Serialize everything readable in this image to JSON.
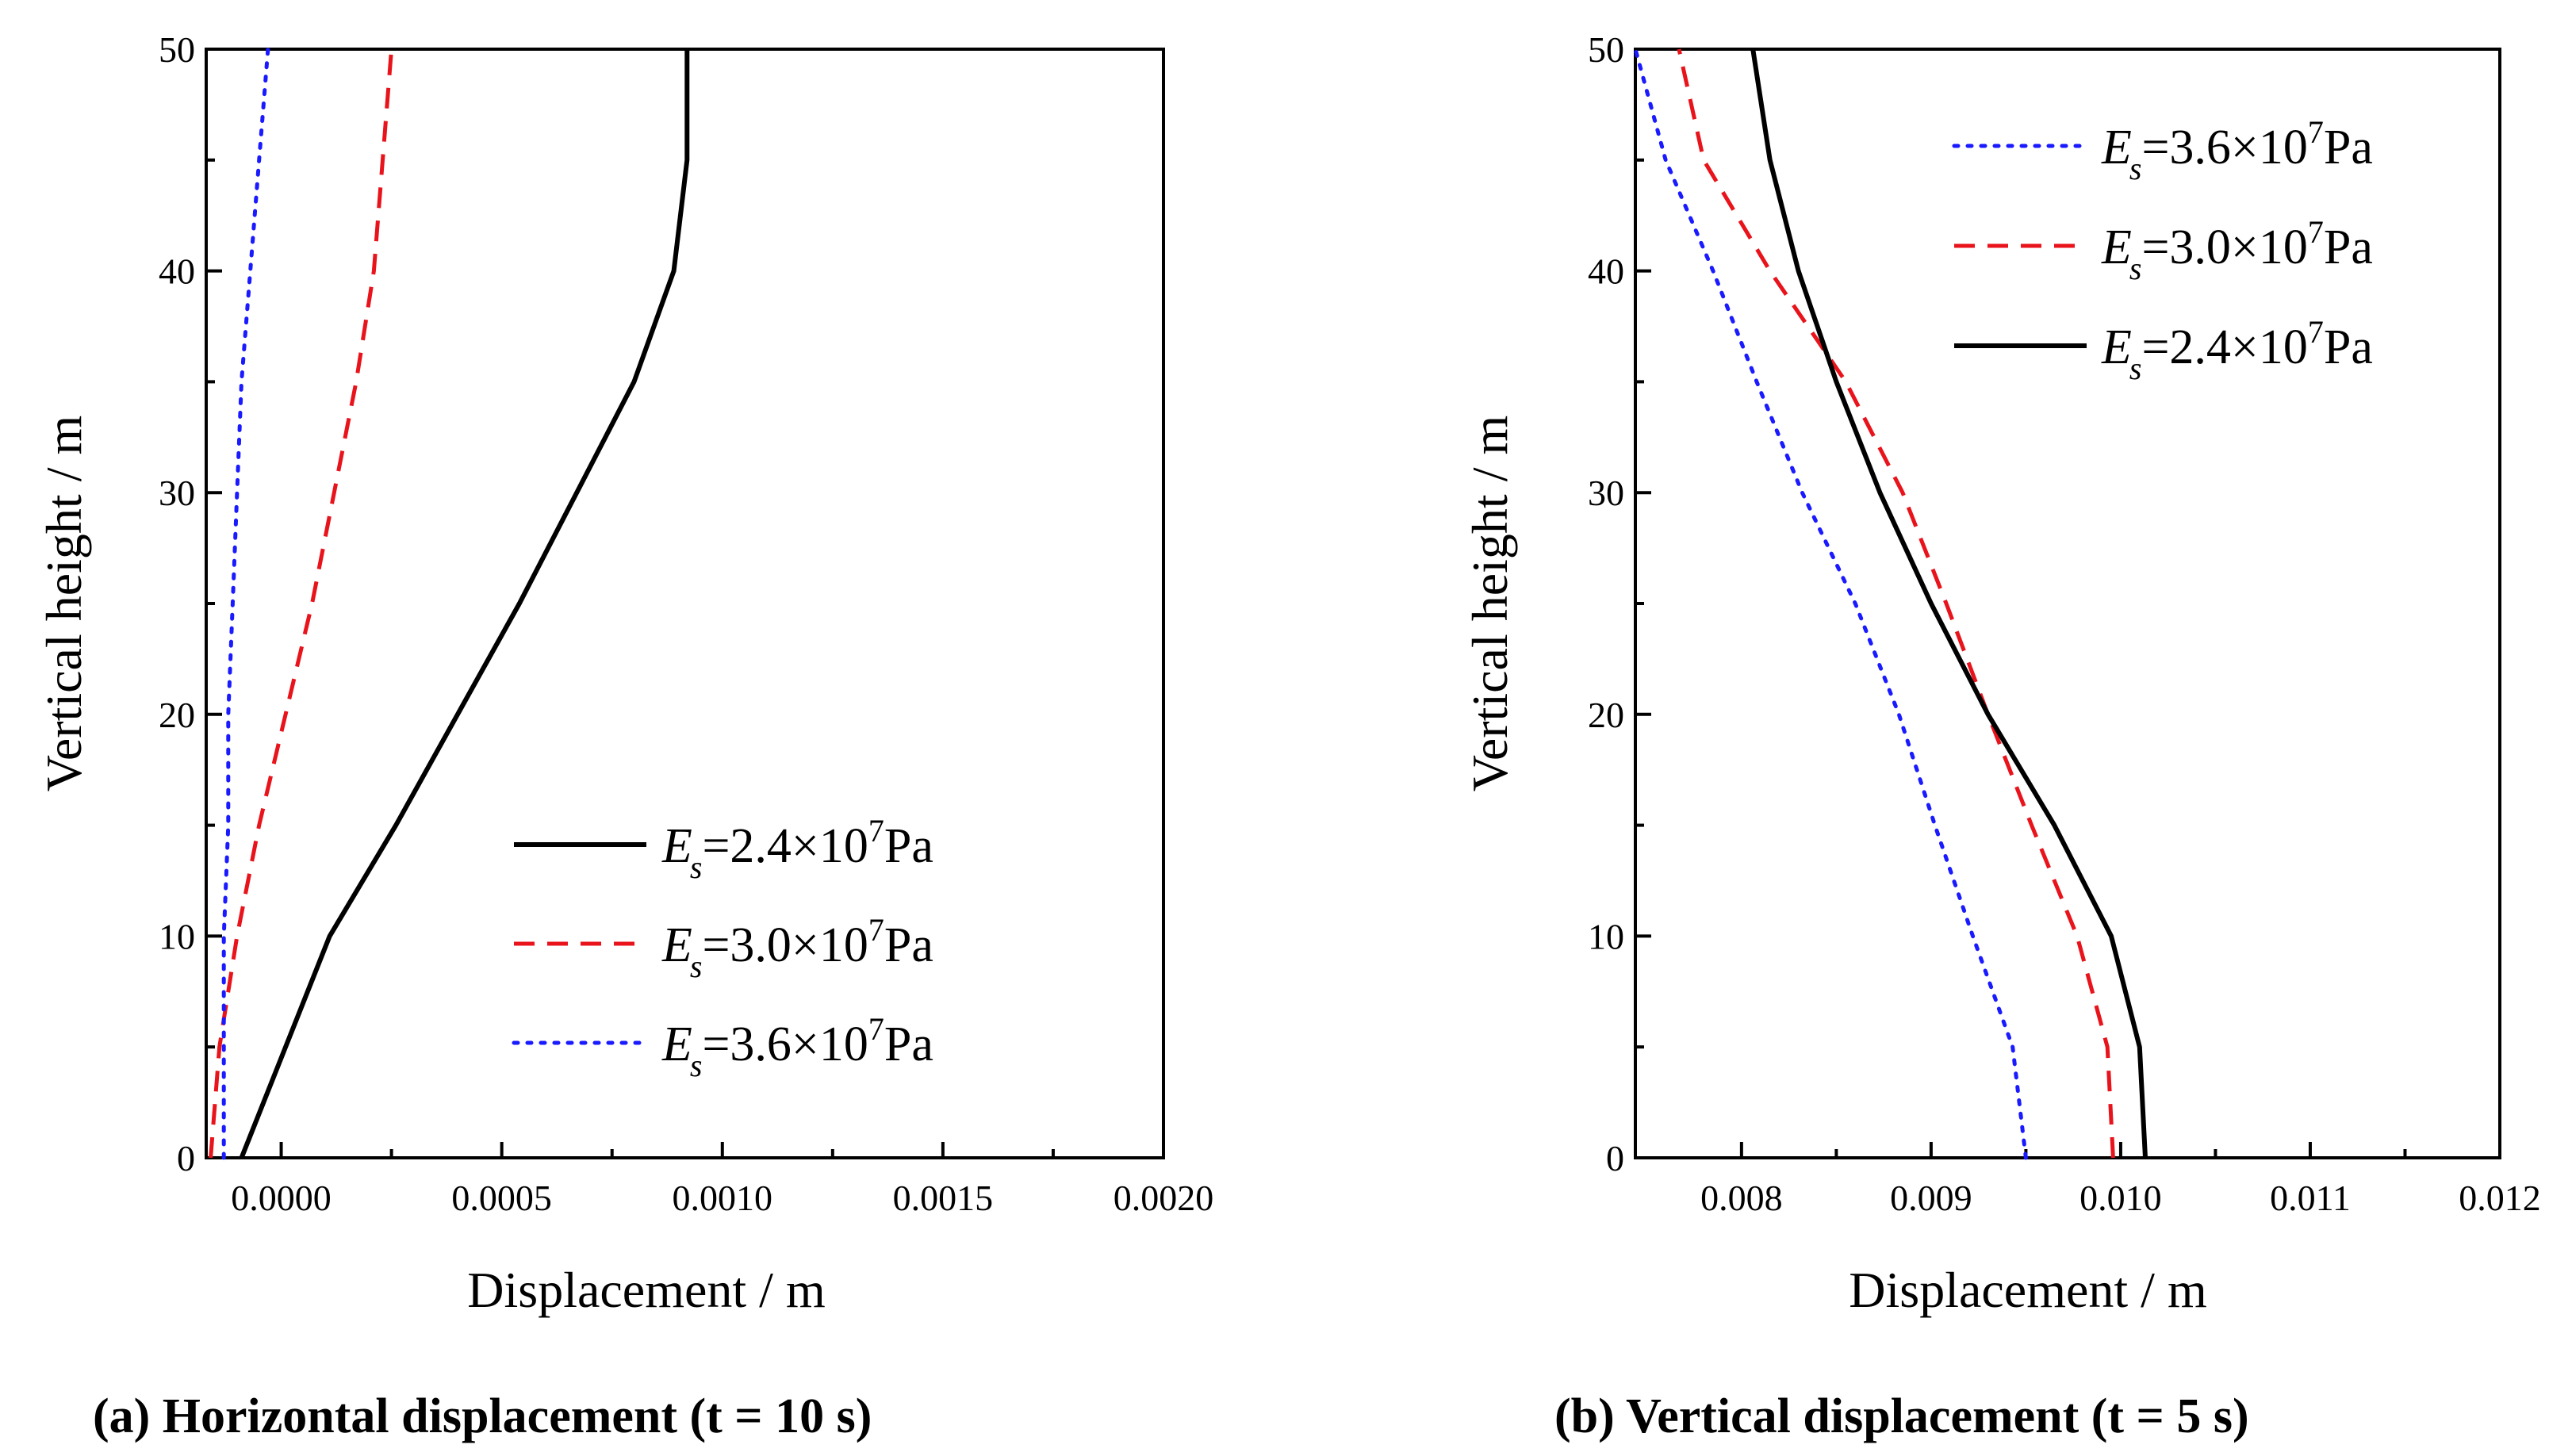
{
  "colors": {
    "es_2_4": "#000000",
    "es_3_0": "#e8131b",
    "es_3_6": "#1a1aff"
  },
  "chart_data": [
    {
      "type": "line",
      "caption": "(a) Horizontal displacement (t = 10 s)",
      "xlabel": "Displacement / m",
      "ylabel": "Vertical height / m",
      "xlim": [
        -0.00017,
        0.002
      ],
      "ylim": [
        0,
        50
      ],
      "xticks": [
        0.0,
        0.0005,
        0.001,
        0.0015,
        0.002
      ],
      "xtick_labels": [
        "0.0000",
        "0.0005",
        "0.0010",
        "0.0015",
        "0.0020"
      ],
      "yticks": [
        0,
        10,
        20,
        30,
        40,
        50
      ],
      "ytick_labels": [
        "0",
        "10",
        "20",
        "30",
        "40",
        "50"
      ],
      "legend_position": "bottom-right",
      "series": [
        {
          "name": "Es=2.4×10^7Pa",
          "label": {
            "E": "E",
            "sub": "s",
            "mid": "=2.4×10",
            "sup": "7",
            "unit": "Pa"
          },
          "color_key": "es_2_4",
          "dash": "solid",
          "points": [
            [
              -9e-05,
              0
            ],
            [
              1e-05,
              5
            ],
            [
              0.00011,
              10
            ],
            [
              0.00026,
              15
            ],
            [
              0.0004,
              20
            ],
            [
              0.00054,
              25
            ],
            [
              0.00067,
              30
            ],
            [
              0.0008,
              35
            ],
            [
              0.00089,
              40
            ],
            [
              0.00092,
              45
            ],
            [
              0.00092,
              50
            ]
          ]
        },
        {
          "name": "Es=3.0×10^7Pa",
          "label": {
            "E": "E",
            "sub": "s",
            "mid": "=3.0×10",
            "sup": "7",
            "unit": "Pa"
          },
          "color_key": "es_3_0",
          "dash": "dash",
          "points": [
            [
              -0.00016,
              0
            ],
            [
              -0.00014,
              5
            ],
            [
              -0.0001,
              10
            ],
            [
              -5e-05,
              15
            ],
            [
              1e-05,
              20
            ],
            [
              7e-05,
              25
            ],
            [
              0.00012,
              30
            ],
            [
              0.00017,
              35
            ],
            [
              0.00021,
              40
            ],
            [
              0.00023,
              45
            ],
            [
              0.00025,
              50
            ]
          ]
        },
        {
          "name": "Es=3.6×10^7Pa",
          "label": {
            "E": "E",
            "sub": "s",
            "mid": "=3.6×10",
            "sup": "7",
            "unit": "Pa"
          },
          "color_key": "es_3_6",
          "dash": "dot",
          "points": [
            [
              -0.00013,
              0
            ],
            [
              -0.00013,
              5
            ],
            [
              -0.00013,
              10
            ],
            [
              -0.00012,
              15
            ],
            [
              -0.00012,
              20
            ],
            [
              -0.00011,
              25
            ],
            [
              -0.0001,
              30
            ],
            [
              -9e-05,
              35
            ],
            [
              -7e-05,
              40
            ],
            [
              -5e-05,
              45
            ],
            [
              -3e-05,
              50
            ]
          ]
        }
      ]
    },
    {
      "type": "line",
      "caption": "(b) Vertical displacement (t = 5 s)",
      "xlabel": "Displacement / m",
      "ylabel": "Vertical height / m",
      "xlim": [
        0.00744,
        0.012
      ],
      "ylim": [
        0,
        50
      ],
      "xticks": [
        0.008,
        0.009,
        0.01,
        0.011,
        0.012
      ],
      "xtick_labels": [
        "0.008",
        "0.009",
        "0.010",
        "0.011",
        "0.012"
      ],
      "yticks": [
        0,
        10,
        20,
        30,
        40,
        50
      ],
      "ytick_labels": [
        "0",
        "10",
        "20",
        "30",
        "40",
        "50"
      ],
      "legend_position": "top-right",
      "series": [
        {
          "name": "Es=3.6×10^7Pa",
          "label": {
            "E": "E",
            "sub": "s",
            "mid": "=3.6×10",
            "sup": "7",
            "unit": "Pa"
          },
          "color_key": "es_3_6",
          "dash": "dot",
          "points": [
            [
              0.0095,
              0
            ],
            [
              0.00943,
              5
            ],
            [
              0.00922,
              10
            ],
            [
              0.00902,
              15
            ],
            [
              0.00883,
              20
            ],
            [
              0.0086,
              25
            ],
            [
              0.00832,
              30
            ],
            [
              0.00808,
              35
            ],
            [
              0.00785,
              40
            ],
            [
              0.0076,
              45
            ],
            [
              0.00744,
              50
            ]
          ]
        },
        {
          "name": "Es=3.0×10^7Pa",
          "label": {
            "E": "E",
            "sub": "s",
            "mid": "=3.0×10",
            "sup": "7",
            "unit": "Pa"
          },
          "color_key": "es_3_0",
          "dash": "dash",
          "points": [
            [
              0.00996,
              0
            ],
            [
              0.00993,
              5
            ],
            [
              0.00977,
              10
            ],
            [
              0.00953,
              15
            ],
            [
              0.0093,
              20
            ],
            [
              0.00908,
              25
            ],
            [
              0.00885,
              30
            ],
            [
              0.00855,
              35
            ],
            [
              0.00815,
              40
            ],
            [
              0.0078,
              45
            ],
            [
              0.00767,
              50
            ]
          ]
        },
        {
          "name": "Es=2.4×10^7Pa",
          "label": {
            "E": "E",
            "sub": "s",
            "mid": "=2.4×10",
            "sup": "7",
            "unit": "Pa"
          },
          "color_key": "es_2_4",
          "dash": "solid",
          "points": [
            [
              0.01013,
              0
            ],
            [
              0.0101,
              5
            ],
            [
              0.00995,
              10
            ],
            [
              0.00965,
              15
            ],
            [
              0.0093,
              20
            ],
            [
              0.009,
              25
            ],
            [
              0.00873,
              30
            ],
            [
              0.0085,
              35
            ],
            [
              0.0083,
              40
            ],
            [
              0.00815,
              45
            ],
            [
              0.00806,
              50
            ]
          ]
        }
      ]
    }
  ]
}
